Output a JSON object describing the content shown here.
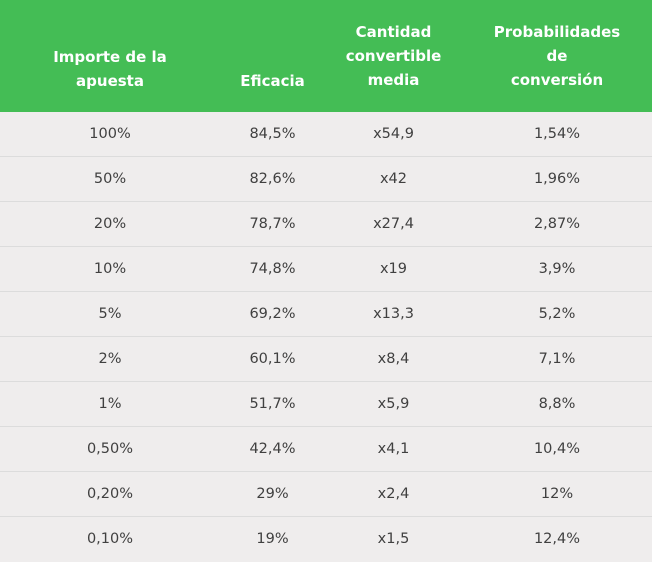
{
  "headers": [
    "Importe de la\napuesta",
    "Eficacia",
    "Cantidad\nconvertible\nmedia",
    "Probabilidades\nde\nconversión"
  ],
  "rows": [
    [
      "100%",
      "84,5%",
      "x54,9",
      "1,54%"
    ],
    [
      "50%",
      "82,6%",
      "x42",
      "1,96%"
    ],
    [
      "20%",
      "78,7%",
      "x27,4",
      "2,87%"
    ],
    [
      "10%",
      "74,8%",
      "x19",
      "3,9%"
    ],
    [
      "5%",
      "69,2%",
      "x13,3",
      "5,2%"
    ],
    [
      "2%",
      "60,1%",
      "x8,4",
      "7,1%"
    ],
    [
      "1%",
      "51,7%",
      "x5,9",
      "8,8%"
    ],
    [
      "0,50%",
      "42,4%",
      "x4,1",
      "10,4%"
    ],
    [
      "0,20%",
      "29%",
      "x2,4",
      "12%"
    ],
    [
      "0,10%",
      "19%",
      "x1,5",
      "12,4%"
    ]
  ],
  "colors": {
    "header_bg": "#44bd55",
    "row_bg": "#efeded",
    "text": "#404040"
  }
}
